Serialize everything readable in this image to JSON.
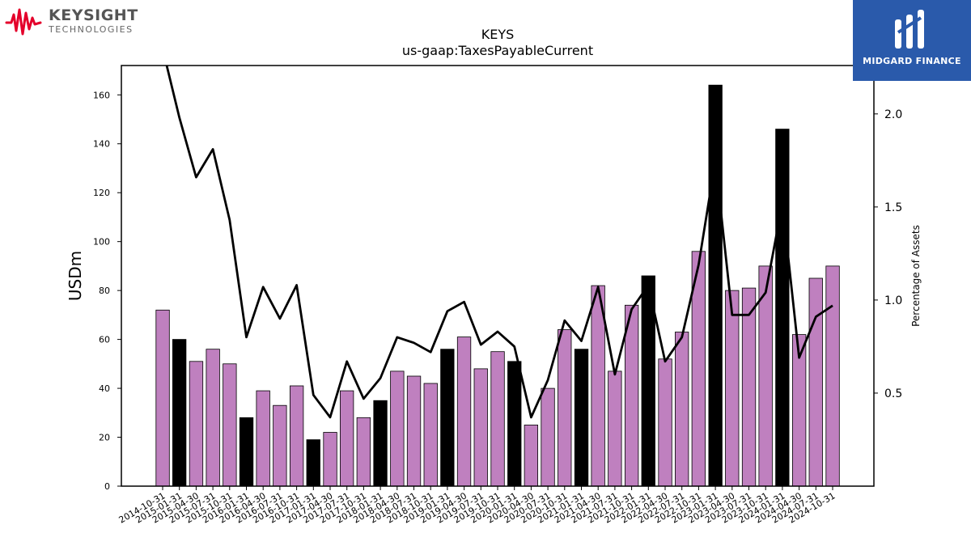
{
  "branding": {
    "left_logo_name": "KEYSIGHT",
    "left_logo_sub": "TECHNOLOGIES",
    "right_logo_name": "MIDGARD FINANCE",
    "right_logo_color": "#2a5aab"
  },
  "chart_data": {
    "type": "bar",
    "title": "KEYS",
    "subtitle": "us-gaap:TaxesPayableCurrent",
    "ylabel": "USDm",
    "ylabel_right": "Percentage of Assets",
    "ylim": [
      0,
      172
    ],
    "yticks": [
      0,
      20,
      40,
      60,
      80,
      100,
      120,
      140,
      160
    ],
    "ylim_right": [
      0.0,
      2.26
    ],
    "yticks_right": [
      0.5,
      1.0,
      1.5,
      2.0
    ],
    "colors": {
      "bar_quarter": "#bf80bf",
      "bar_fiscal_year_end": "#000000",
      "line": "#000000"
    },
    "categories": [
      "2014-10-31",
      "2015-01-31",
      "2015-04-30",
      "2015-07-31",
      "2015-10-31",
      "2016-01-31",
      "2016-04-30",
      "2016-07-31",
      "2016-10-31",
      "2017-01-31",
      "2017-04-30",
      "2017-07-31",
      "2017-10-31",
      "2018-01-31",
      "2018-04-30",
      "2018-07-31",
      "2018-10-31",
      "2019-01-31",
      "2019-04-30",
      "2019-07-31",
      "2019-10-31",
      "2020-01-31",
      "2020-04-30",
      "2020-07-31",
      "2020-10-31",
      "2021-01-31",
      "2021-04-30",
      "2021-07-31",
      "2021-10-31",
      "2022-01-31",
      "2022-04-30",
      "2022-07-31",
      "2022-10-31",
      "2023-01-31",
      "2023-04-30",
      "2023-07-31",
      "2023-10-31",
      "2024-01-31",
      "2024-04-30",
      "2024-07-31",
      "2024-10-31"
    ],
    "series": [
      {
        "values": [
          72,
          60,
          51,
          56,
          50,
          28,
          39,
          33,
          41,
          19,
          22,
          39,
          28,
          35,
          47,
          45,
          42,
          56,
          61,
          48,
          55,
          51,
          25,
          40,
          64,
          56,
          82,
          47,
          74,
          86,
          52,
          63,
          96,
          164,
          80,
          81,
          90,
          146,
          62,
          85,
          90
        ],
        "highlight": [
          false,
          true,
          false,
          false,
          false,
          true,
          false,
          false,
          false,
          true,
          false,
          false,
          false,
          true,
          false,
          false,
          false,
          true,
          false,
          false,
          false,
          true,
          false,
          false,
          false,
          true,
          false,
          false,
          false,
          true,
          false,
          false,
          false,
          true,
          false,
          false,
          false,
          true,
          false,
          false,
          false
        ]
      },
      {
        "axis": "right",
        "values": [
          2.35,
          1.98,
          1.66,
          1.81,
          1.43,
          0.8,
          1.07,
          0.9,
          1.08,
          0.49,
          0.37,
          0.67,
          0.47,
          0.58,
          0.8,
          0.77,
          0.72,
          0.94,
          0.99,
          0.76,
          0.83,
          0.75,
          0.37,
          0.57,
          0.89,
          0.78,
          1.07,
          0.6,
          0.95,
          1.08,
          0.67,
          0.8,
          1.19,
          1.75,
          0.92,
          0.92,
          1.04,
          1.52,
          0.69,
          0.91,
          0.97
        ]
      }
    ]
  }
}
